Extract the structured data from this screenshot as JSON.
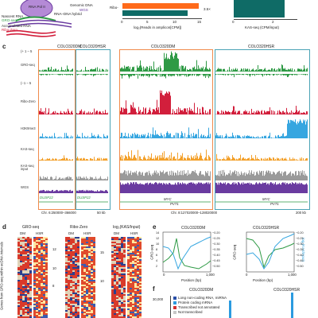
{
  "panel_top": {
    "legend_left": {
      "rna_pol": "RNA Pol II",
      "genomic_dna": "Genomic DNA",
      "wgs": "WGS",
      "nascent_rna": "Nascent RNA",
      "gro_seq": "GRO-seq",
      "rna_dna_hybrid": "RNA–DNA hybrid",
      "accumulated_rna": "Accumulated RNA",
      "ribo_zero": "Ribo-Zero"
    },
    "bar_chart": {
      "row_label": "Ribo-",
      "xlabel": "log₂(Reads in amplicon[CPM])",
      "ticks": [
        "0",
        "5",
        "10",
        "15"
      ],
      "annotation": "3.5×",
      "colors": {
        "top": "#ff6a1a",
        "bottom": "#0f6b66"
      }
    },
    "kas_chart": {
      "xlabel": "KAS-seq (CPM/input)",
      "ticks": [
        "0",
        "2"
      ],
      "color": "#0f6b66"
    }
  },
  "panel_c": {
    "letter": "c",
    "left_title_dm": "COLO320DM",
    "left_title_hsr": "COLO320HSR",
    "mid_title_dm": "COLO320DM",
    "mid_title_hsr": "COLO320HSR",
    "tracks": [
      {
        "label": "(+ 1 – 5",
        "name": "gro-plus-scale"
      },
      {
        "label": "GRO-seq",
        "name": "gro-seq"
      },
      {
        "label": "(−1 – 5",
        "name": "gro-minus-scale"
      },
      {
        "label": "Ribo-Zero",
        "name": "ribo-zero"
      },
      {
        "label": "H3K9me3",
        "name": "h3k9me3"
      },
      {
        "label": "KAS-seq",
        "name": "kas-seq"
      },
      {
        "label": "KAS-seq input",
        "name": "kas-input"
      },
      {
        "label": "WGS",
        "name": "wgs"
      }
    ],
    "gene_left_1": "DUSP22",
    "gene_left_2": "DUSP22",
    "gene_mid": "MYC",
    "gene_mid_2": "PVT1",
    "gene_right": "MYC",
    "gene_right_2": "PVT1",
    "coord_left": "Chr. 6:250000–366000",
    "scale_left": "50 kb",
    "coord_mid": "Chr. 8:127020000–128020000",
    "scale_right": "200 kb",
    "colors": {
      "gro": "#2e9a45",
      "ribo": "#d21f3c",
      "h3k9": "#36a6e0",
      "kas": "#f3a02a",
      "input": "#9a9a9a",
      "wgs": "#6a3ba0",
      "dm_box": "#f08a4b",
      "hsr_box": "#4aa3b5"
    }
  },
  "panel_d": {
    "letter": "d",
    "col1": "GRO-seq",
    "col2": "Ribo-Zero",
    "col3": "log₂(KAS/Input)",
    "dm": "DM",
    "hsr": "HSR",
    "side_label": "Genes from GRO-seq within ecDNA intervals",
    "ticks1": [
      "12",
      "10",
      "8"
    ],
    "ticks2": [
      "15",
      "10"
    ]
  },
  "panel_e": {
    "letter": "e",
    "title_dm": "COLO320DM",
    "title_hsr": "COLO320HSR",
    "ylabel_left": "GRO-seq",
    "ylabel_right": "log₂(KAS/Input)",
    "xlabel": "Position (bp)",
    "yticks_left": [
      "14",
      "12",
      "10",
      "8",
      "6",
      "4",
      "2"
    ],
    "yticks_right": [
      "−0.20",
      "−0.25",
      "−0.30",
      "−0.35",
      "−0.40",
      "−0.45",
      "−0.50"
    ],
    "xticks": [
      "0",
      "1,000"
    ],
    "colors": {
      "gro": "#2e9a45",
      "kas": "#36a6e0"
    }
  },
  "panel_f": {
    "letter": "f",
    "title_dm": "COLO320DM",
    "title_hsr": "COLO320HSR",
    "ytick": "30,000",
    "legend": [
      {
        "label": "Long non-coding RNA, miRNA",
        "color": "#2a4fa8"
      },
      {
        "label": "Protein coding mRNA",
        "color": "#2b9be0"
      },
      {
        "label": "Transcribed not annotated",
        "color": "#d33030"
      },
      {
        "label": "Not transcribed",
        "color": "#c7c7c7"
      }
    ]
  }
}
